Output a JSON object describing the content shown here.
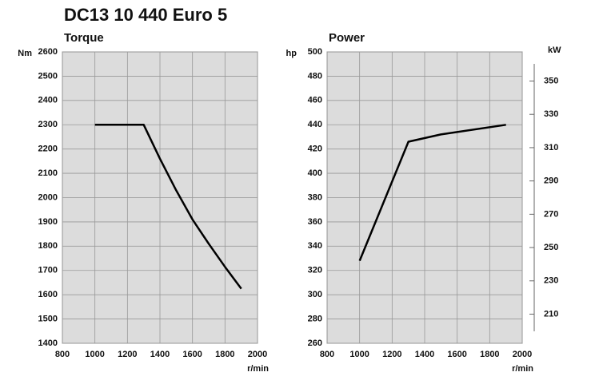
{
  "title": "DC13 10 440 Euro 5",
  "chart_data": [
    {
      "type": "line",
      "title": "Torque",
      "y_unit": "Nm",
      "x_label": "r/min",
      "x": [
        1000,
        1300,
        1400,
        1500,
        1600,
        1700,
        1800,
        1900
      ],
      "values": [
        2300,
        2300,
        2160,
        2030,
        1910,
        1810,
        1715,
        1625
      ],
      "color": "#000000",
      "xlim": [
        800,
        2000
      ],
      "xticks": [
        800,
        1000,
        1200,
        1400,
        1600,
        1800,
        2000
      ],
      "ylim": [
        1400,
        2600
      ],
      "yticks": [
        1400,
        1500,
        1600,
        1700,
        1800,
        1900,
        2000,
        2100,
        2200,
        2300,
        2400,
        2500,
        2600
      ],
      "grid": true
    },
    {
      "type": "line",
      "title": "Power",
      "y_unit": "hp",
      "y2_unit": "kW",
      "x_label": "r/min",
      "x": [
        1000,
        1300,
        1500,
        1900
      ],
      "values": [
        328,
        426,
        432,
        440
      ],
      "color": "#000000",
      "xlim": [
        800,
        2000
      ],
      "xticks": [
        800,
        1000,
        1200,
        1400,
        1600,
        1800,
        2000
      ],
      "ylim": [
        260,
        500
      ],
      "yticks": [
        260,
        280,
        300,
        320,
        340,
        360,
        380,
        400,
        420,
        440,
        460,
        480,
        500
      ],
      "y2lim": [
        192.5,
        367.5
      ],
      "y2ticks": [
        210,
        230,
        250,
        270,
        290,
        310,
        330,
        350
      ],
      "grid": true
    }
  ]
}
